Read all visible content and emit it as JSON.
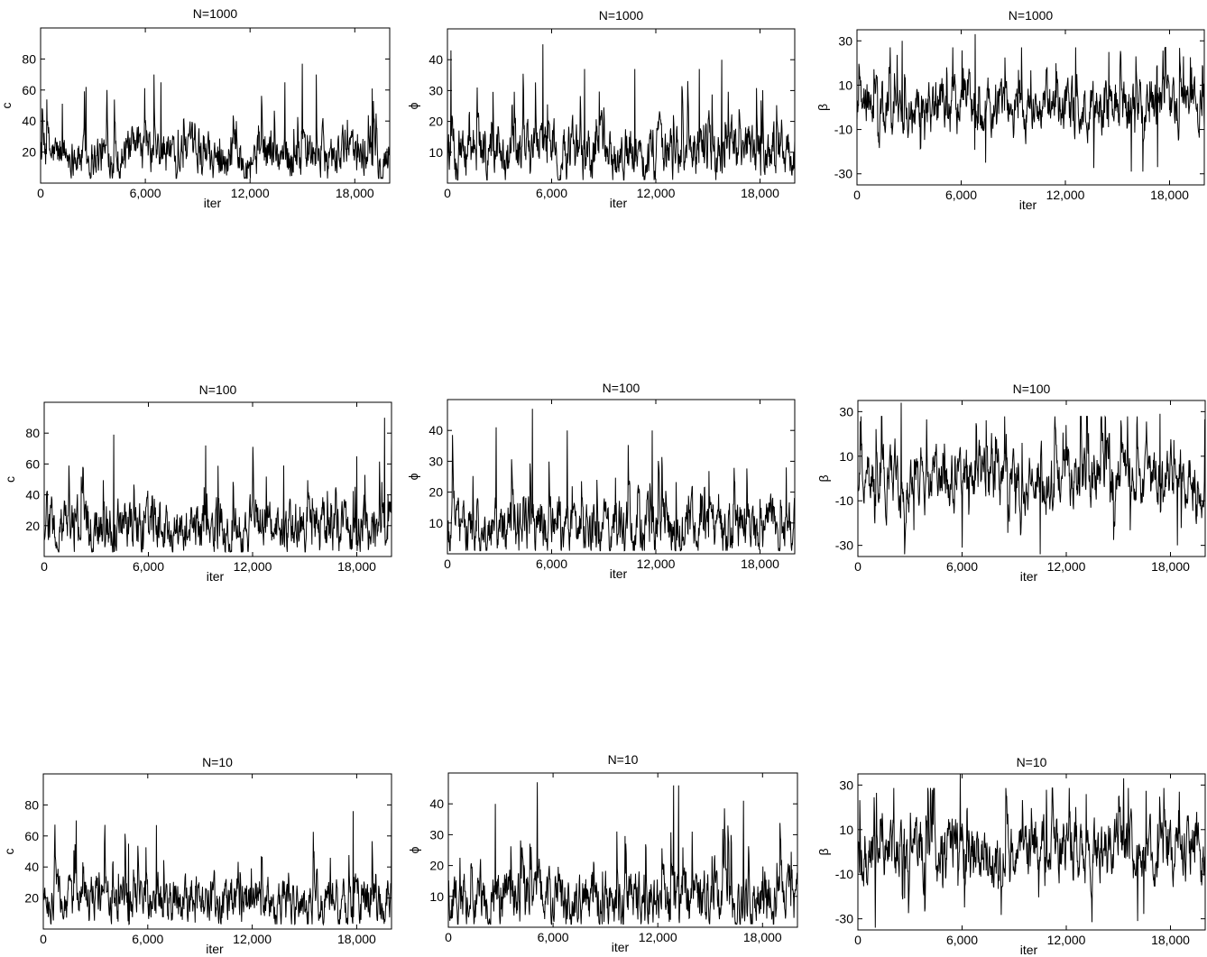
{
  "chart_data": [
    {
      "type": "line",
      "title": "N=1000",
      "xlabel": "iter",
      "ylabel": "c",
      "xlim": [
        0,
        20000
      ],
      "ylim": [
        0,
        100
      ],
      "xticks": [
        0,
        6000,
        12000,
        18000
      ],
      "xtick_labels": [
        "0",
        "6,000",
        "12,000",
        "18,000"
      ],
      "yticks": [
        20,
        40,
        60,
        80
      ],
      "ytick_labels": [
        "20",
        "40",
        "60",
        "80"
      ],
      "series": [
        {
          "stats": {
            "min": 3,
            "base": 18,
            "max": 77
          },
          "spikes": [
            [
              2600,
              62
            ],
            [
              6500,
              70
            ],
            [
              6900,
              65
            ],
            [
              14000,
              65
            ],
            [
              15000,
              77
            ],
            [
              15800,
              70
            ],
            [
              19000,
              61
            ]
          ]
        }
      ]
    },
    {
      "type": "line",
      "title": "N=1000",
      "xlabel": "iter",
      "ylabel": "ϕ",
      "xlim": [
        0,
        20000
      ],
      "ylim": [
        0,
        50
      ],
      "xticks": [
        0,
        6000,
        12000,
        18000
      ],
      "xtick_labels": [
        "0",
        "6,000",
        "12,000",
        "18,000"
      ],
      "yticks": [
        10,
        20,
        30,
        40
      ],
      "ytick_labels": [
        "10",
        "20",
        "30",
        "40"
      ],
      "series": [
        {
          "stats": {
            "min": 1,
            "base": 10,
            "max": 45
          },
          "spikes": [
            [
              200,
              43
            ],
            [
              5500,
              45
            ],
            [
              7900,
              37
            ],
            [
              10800,
              37
            ],
            [
              14500,
              37
            ],
            [
              15800,
              40
            ]
          ]
        }
      ]
    },
    {
      "type": "line",
      "title": "N=1000",
      "xlabel": "iter",
      "ylabel": "β",
      "xlim": [
        0,
        20000
      ],
      "ylim": [
        -35,
        35
      ],
      "xticks": [
        0,
        6000,
        12000,
        18000
      ],
      "xtick_labels": [
        "0",
        "6,000",
        "12,000",
        "18,000"
      ],
      "yticks": [
        -30,
        -10,
        10,
        30
      ],
      "ytick_labels": [
        "-30",
        "-10",
        "10",
        "30"
      ],
      "series": [
        {
          "stats": {
            "min": -29,
            "base": 0,
            "max": 33
          },
          "spikes": [
            [
              2600,
              30
            ],
            [
              6800,
              33
            ],
            [
              14500,
              25
            ],
            [
              18800,
              23
            ],
            [
              15800,
              -29
            ],
            [
              17300,
              -27
            ],
            [
              7400,
              -25
            ]
          ]
        }
      ]
    },
    {
      "type": "line",
      "title": "N=100",
      "xlabel": "iter",
      "ylabel": "c",
      "xlim": [
        0,
        20000
      ],
      "ylim": [
        0,
        100
      ],
      "xticks": [
        0,
        6000,
        12000,
        18000
      ],
      "xtick_labels": [
        "0",
        "6,000",
        "12,000",
        "18,000"
      ],
      "yticks": [
        20,
        40,
        60,
        80
      ],
      "ytick_labels": [
        "20",
        "40",
        "60",
        "80"
      ],
      "series": [
        {
          "stats": {
            "min": 3,
            "base": 18,
            "max": 90
          },
          "spikes": [
            [
              4000,
              79
            ],
            [
              9300,
              72
            ],
            [
              13800,
              59
            ],
            [
              18000,
              65
            ],
            [
              19600,
              90
            ],
            [
              20000,
              75
            ]
          ]
        }
      ]
    },
    {
      "type": "line",
      "title": "N=100",
      "xlabel": "iter",
      "ylabel": "ϕ",
      "xlim": [
        0,
        20000
      ],
      "ylim": [
        0,
        50
      ],
      "xticks": [
        0,
        6000,
        12000,
        18000
      ],
      "xtick_labels": [
        "0",
        "6,000",
        "12,000",
        "18,000"
      ],
      "yticks": [
        10,
        20,
        30,
        40
      ],
      "ytick_labels": [
        "10",
        "20",
        "30",
        "40"
      ],
      "series": [
        {
          "stats": {
            "min": 1,
            "base": 8,
            "max": 47
          },
          "spikes": [
            [
              2800,
              41
            ],
            [
              4900,
              47
            ],
            [
              6900,
              40
            ],
            [
              11800,
              40
            ],
            [
              19500,
              28
            ]
          ]
        }
      ]
    },
    {
      "type": "line",
      "title": "N=100",
      "xlabel": "iter",
      "ylabel": "β",
      "xlim": [
        0,
        20000
      ],
      "ylim": [
        -35,
        35
      ],
      "xticks": [
        0,
        6000,
        12000,
        18000
      ],
      "xtick_labels": [
        "0",
        "6,000",
        "12,000",
        "18,000"
      ],
      "yticks": [
        -30,
        -10,
        10,
        30
      ],
      "ytick_labels": [
        "-30",
        "-10",
        "10",
        "30"
      ],
      "series": [
        {
          "stats": {
            "min": -34,
            "base": 0,
            "max": 34
          },
          "spikes": [
            [
              2500,
              34
            ],
            [
              17400,
              29
            ],
            [
              10500,
              -34
            ],
            [
              6000,
              -31
            ],
            [
              18400,
              -30
            ]
          ]
        }
      ]
    },
    {
      "type": "line",
      "title": "N=10",
      "xlabel": "iter",
      "ylabel": "c",
      "xlim": [
        0,
        20000
      ],
      "ylim": [
        0,
        100
      ],
      "xticks": [
        0,
        6000,
        12000,
        18000
      ],
      "xtick_labels": [
        "0",
        "6,000",
        "12,000",
        "18,000"
      ],
      "yticks": [
        20,
        40,
        60,
        80
      ],
      "ytick_labels": [
        "20",
        "40",
        "60",
        "80"
      ],
      "series": [
        {
          "stats": {
            "min": 3,
            "base": 18,
            "max": 82
          },
          "spikes": [
            [
              1900,
              70
            ],
            [
              6500,
              67
            ],
            [
              17800,
              76
            ],
            [
              20000,
              82
            ],
            [
              4900,
              55
            ]
          ]
        }
      ]
    },
    {
      "type": "line",
      "title": "N=10",
      "xlabel": "iter",
      "ylabel": "ϕ",
      "xlim": [
        0,
        20000
      ],
      "ylim": [
        0,
        50
      ],
      "xticks": [
        0,
        6000,
        12000,
        18000
      ],
      "xtick_labels": [
        "0",
        "6,000",
        "12,000",
        "18,000"
      ],
      "yticks": [
        10,
        20,
        30,
        40
      ],
      "ytick_labels": [
        "10",
        "20",
        "30",
        "40"
      ],
      "series": [
        {
          "stats": {
            "min": 1,
            "base": 9,
            "max": 47
          },
          "spikes": [
            [
              5100,
              47
            ],
            [
              12900,
              46
            ],
            [
              13200,
              46
            ],
            [
              2700,
              40
            ],
            [
              16900,
              41
            ]
          ]
        }
      ]
    },
    {
      "type": "line",
      "title": "N=10",
      "xlabel": "iter",
      "ylabel": "β",
      "xlim": [
        0,
        20000
      ],
      "ylim": [
        -35,
        35
      ],
      "xticks": [
        0,
        6000,
        12000,
        18000
      ],
      "xtick_labels": [
        "0",
        "6,000",
        "12,000",
        "18,000"
      ],
      "yticks": [
        -30,
        -10,
        10,
        30
      ],
      "ytick_labels": [
        "-30",
        "-10",
        "10",
        "30"
      ],
      "series": [
        {
          "stats": {
            "min": -34,
            "base": 0,
            "max": 35
          },
          "spikes": [
            [
              5900,
              35
            ],
            [
              15300,
              33
            ],
            [
              1000,
              -34
            ],
            [
              16100,
              -31
            ]
          ]
        }
      ]
    }
  ]
}
